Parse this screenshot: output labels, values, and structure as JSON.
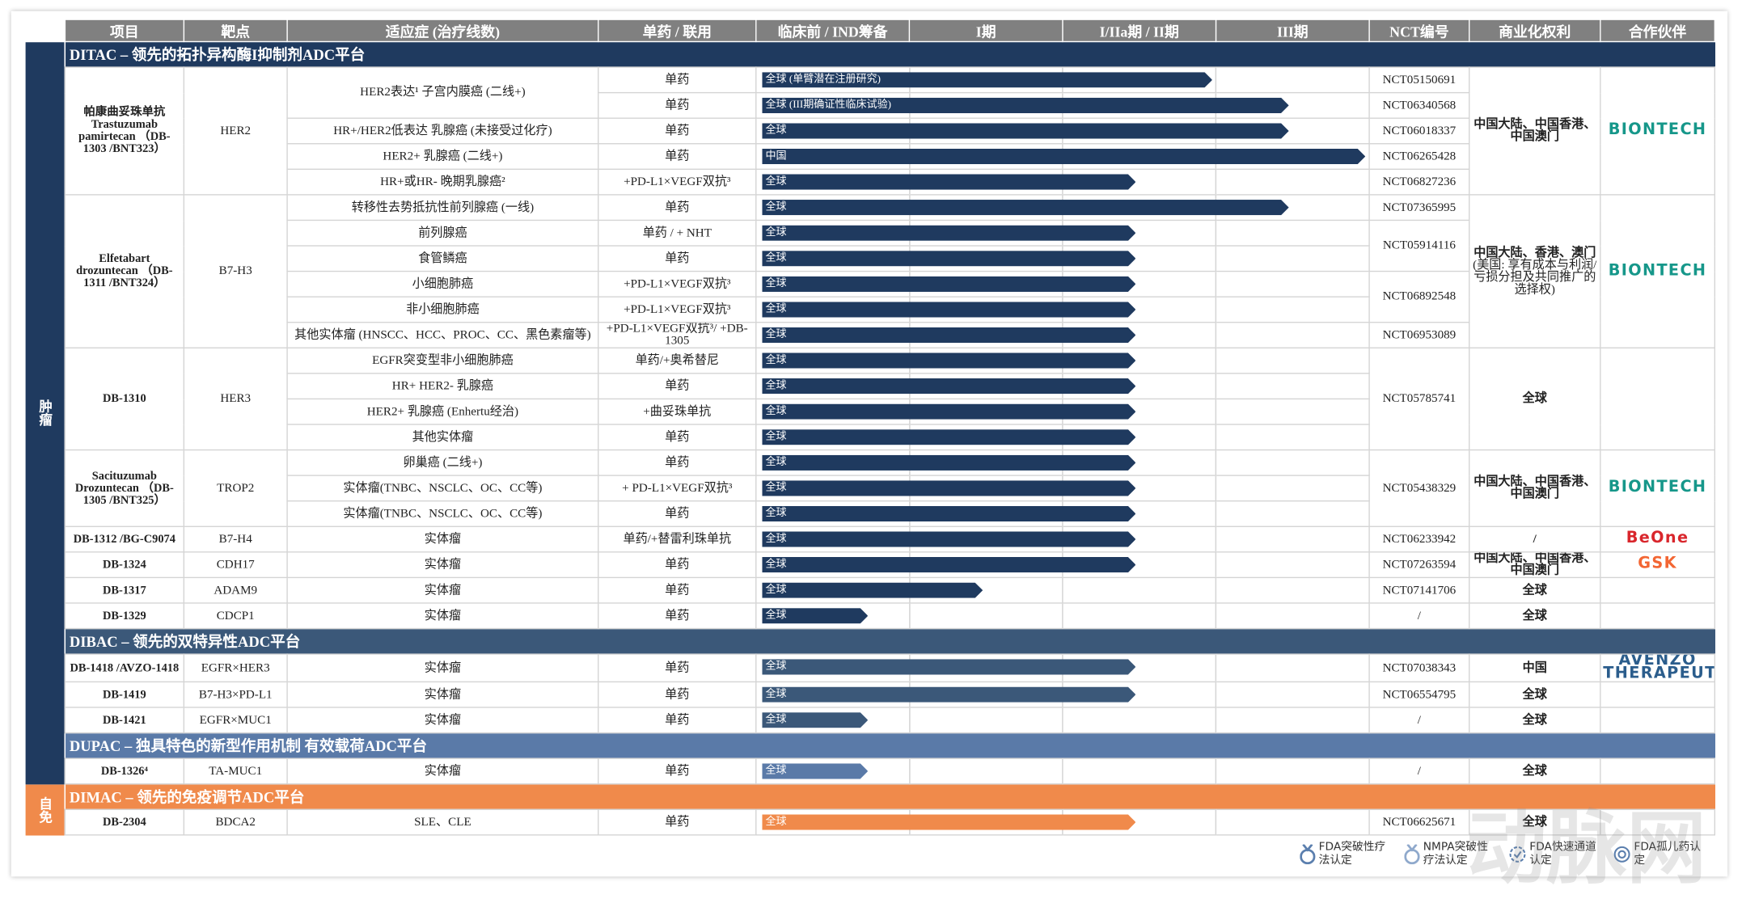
{
  "headers": [
    "项目",
    "靶点",
    "适应症 (治疗线数)",
    "单药 / 联用",
    "临床前 / IND筹备",
    "I期",
    "I/IIa期 / II期",
    "III期",
    "NCT编号",
    "商业化权利",
    "合作伙伴"
  ],
  "areas": [
    {
      "label": "肿瘤",
      "color": "#1f3a5f",
      "sections": [
        {
          "title": "DITAC – 领先的拓扑异构酶I抑制剂ADC平台",
          "color": "#1f3a5f",
          "groups": [
            {
              "drug": "帕康曲妥珠单抗 Trastuzumab pamirtecan （DB-1303 /BNT323）",
              "target": "HER2",
              "rights": "中国大陆、中国香港、中国澳门",
              "partner": "BIONTECH",
              "partner_color": "#16978a",
              "rows": [
                {
                  "indication": "HER2表达¹ 子宫内膜癌 (二线+)",
                  "regimen": "单药",
                  "bar": "全球 (单臂潜在注册研究)",
                  "progress": 3,
                  "nct": "NCT05150691"
                },
                {
                  "regimen": "单药",
                  "bar": "全球 (III期确证性临床试验)",
                  "progress": 3.5,
                  "nct": "NCT06340568"
                },
                {
                  "indication": "HR+/HER2低表达 乳腺癌 (未接受过化疗)",
                  "regimen": "单药",
                  "bar": "全球",
                  "progress": 3.5,
                  "nct": "NCT06018337"
                },
                {
                  "indication": "HER2+ 乳腺癌 (二线+)",
                  "regimen": "单药",
                  "bar": "中国",
                  "progress": 4,
                  "nct": "NCT06265428"
                },
                {
                  "indication": "HR+或HR- 晚期乳腺癌²",
                  "regimen": "+PD-L1×VEGF双抗³",
                  "bar": "全球",
                  "progress": 2.5,
                  "nct": "NCT06827236"
                }
              ]
            },
            {
              "drug": "Elfetabart drozuntecan （DB-1311 /BNT324）",
              "target": "B7-H3",
              "rights": "中国大陆、香港、澳门",
              "rights_note": "(美国: 享有成本与利润/亏损分担及共同推广的选择权)",
              "partner": "BIONTECH",
              "partner_color": "#16978a",
              "rows": [
                {
                  "indication": "转移性去势抵抗性前列腺癌 (一线)",
                  "regimen": "单药",
                  "bar": "全球",
                  "progress": 3.5,
                  "nct": "NCT07365995"
                },
                {
                  "indication": "前列腺癌",
                  "regimen": "单药 / + NHT",
                  "bar": "全球",
                  "progress": 2.5,
                  "nct": "NCT05914116"
                },
                {
                  "indication": "食管鳞癌",
                  "regimen": "单药",
                  "bar": "全球",
                  "progress": 2.5
                },
                {
                  "indication": "小细胞肺癌",
                  "regimen": "+PD-L1×VEGF双抗³",
                  "bar": "全球",
                  "progress": 2.5,
                  "nct": "NCT06892548"
                },
                {
                  "indication": "非小细胞肺癌",
                  "regimen": "+PD-L1×VEGF双抗³",
                  "bar": "全球",
                  "progress": 2.5
                },
                {
                  "indication": "其他实体瘤 (HNSCC、HCC、PROC、CC、黑色素瘤等)",
                  "regimen": "+PD-L1×VEGF双抗³/ +DB-1305",
                  "bar": "全球",
                  "progress": 2.5,
                  "nct": "NCT06953089"
                }
              ]
            },
            {
              "drug": "DB-1310",
              "target": "HER3",
              "rights": "全球",
              "rows": [
                {
                  "indication": "EGFR突变型非小细胞肺癌",
                  "regimen": "单药/+奥希替尼",
                  "bar": "全球",
                  "progress": 2.5,
                  "nct": "NCT05785741"
                },
                {
                  "indication": "HR+ HER2- 乳腺癌",
                  "regimen": "单药",
                  "bar": "全球",
                  "progress": 2.5
                },
                {
                  "indication": "HER2+ 乳腺癌 (Enhertu经治)",
                  "regimen": "+曲妥珠单抗",
                  "bar": "全球",
                  "progress": 2.5
                },
                {
                  "indication": "其他实体瘤",
                  "regimen": "单药",
                  "bar": "全球",
                  "progress": 2.5
                }
              ]
            },
            {
              "drug": "Sacituzumab Drozuntecan （DB-1305 /BNT325）",
              "target": "TROP2",
              "rights": "中国大陆、中国香港、中国澳门",
              "partner": "BIONTECH",
              "partner_color": "#16978a",
              "rows": [
                {
                  "indication": "卵巢癌 (二线+)",
                  "regimen": "单药",
                  "bar": "全球",
                  "progress": 2.5,
                  "nct": "NCT05438329"
                },
                {
                  "indication": "实体瘤(TNBC、NSCLC、OC、CC等)",
                  "regimen": "+ PD-L1×VEGF双抗³",
                  "bar": "全球",
                  "progress": 2.5
                },
                {
                  "indication": "实体瘤(TNBC、NSCLC、OC、CC等)",
                  "regimen": "单药",
                  "bar": "全球",
                  "progress": 2.5
                }
              ]
            },
            {
              "drug": "DB-1312 /BG-C9074",
              "target": "B7-H4",
              "rights": "/",
              "partner": "BeOne",
              "partner_color": "#d9262c",
              "rows": [
                {
                  "indication": "实体瘤",
                  "regimen": "单药/+替雷利珠单抗",
                  "bar": "全球",
                  "progress": 2.5,
                  "nct": "NCT06233942"
                }
              ]
            },
            {
              "drug": "DB-1324",
              "target": "CDH17",
              "rights": "中国大陆、中国香港、中国澳门",
              "partner": "GSK",
              "partner_color": "#f36633",
              "rows": [
                {
                  "indication": "实体瘤",
                  "regimen": "单药",
                  "bar": "全球",
                  "progress": 2.5,
                  "nct": "NCT07263594"
                }
              ]
            },
            {
              "drug": "DB-1317",
              "target": "ADAM9",
              "rights": "全球",
              "rows": [
                {
                  "indication": "实体瘤",
                  "regimen": "单药",
                  "bar": "全球",
                  "progress": 1.5,
                  "nct": "NCT07141706"
                }
              ]
            },
            {
              "drug": "DB-1329",
              "target": "CDCP1",
              "rights": "全球",
              "rows": [
                {
                  "indication": "实体瘤",
                  "regimen": "单药",
                  "bar": "全球",
                  "progress": 0.75,
                  "nct": "/"
                }
              ]
            }
          ]
        },
        {
          "title": "DIBAC – 领先的双特异性ADC平台",
          "color": "#3b5879",
          "groups": [
            {
              "drug": "DB-1418 /AVZO-1418",
              "target": "EGFR×HER3",
              "rights": "中国",
              "partner": "AVENZO THERAPEUTICS",
              "partner_color": "#2b5d8c",
              "rows": [
                {
                  "indication": "实体瘤",
                  "regimen": "单药",
                  "bar": "全球",
                  "progress": 2.5,
                  "nct": "NCT07038343"
                }
              ]
            },
            {
              "drug": "DB-1419",
              "target": "B7-H3×PD-L1",
              "rights": "全球",
              "rows": [
                {
                  "indication": "实体瘤",
                  "regimen": "单药",
                  "bar": "全球",
                  "progress": 2.5,
                  "nct": "NCT06554795"
                }
              ]
            },
            {
              "drug": "DB-1421",
              "target": "EGFR×MUC1",
              "rights": "全球",
              "rows": [
                {
                  "indication": "实体瘤",
                  "regimen": "单药",
                  "bar": "全球",
                  "progress": 0.75,
                  "nct": "/"
                }
              ]
            }
          ]
        },
        {
          "title": "DUPAC – 独具特色的新型作用机制 有效载荷ADC平台",
          "color": "#5a7aa8",
          "groups": [
            {
              "drug": "DB-1326⁴",
              "target": "TA-MUC1",
              "rights": "全球",
              "rows": [
                {
                  "indication": "实体瘤",
                  "regimen": "单药",
                  "bar": "全球",
                  "progress": 0.75,
                  "nct": "/"
                }
              ]
            }
          ]
        }
      ]
    },
    {
      "label": "自免",
      "color": "#f08a4b",
      "sections": [
        {
          "title": "DIMAC – 领先的免疫调节ADC平台",
          "color": "#f08a4b",
          "groups": [
            {
              "drug": "DB-2304",
              "target": "BDCA2",
              "rights": "全球",
              "rows": [
                {
                  "indication": "SLE、CLE",
                  "regimen": "单药",
                  "bar": "全球",
                  "progress": 2.5,
                  "nct": "NCT06625671"
                }
              ]
            }
          ]
        }
      ]
    }
  ],
  "legend": [
    "FDA突破性疗法认定",
    "NMPA突破性疗法认定",
    "FDA快速通道认定",
    "FDA孤儿药认定"
  ],
  "watermark": "动脉网"
}
